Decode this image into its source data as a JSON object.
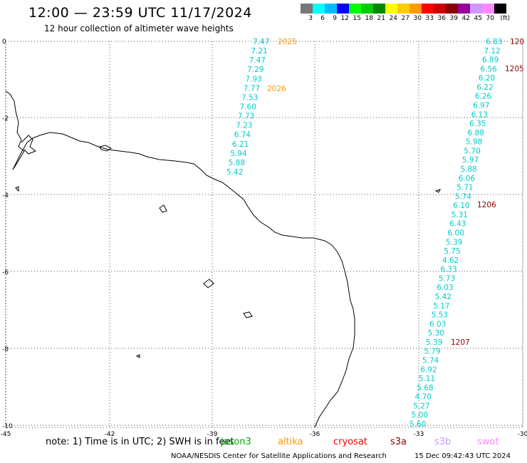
{
  "header": {
    "title": "12:00 — 23:59 UTC 11/17/2024",
    "subtitle": "12 hour collection of altimeter wave heights"
  },
  "colorbar": {
    "unit": "(ft)",
    "labels": [
      "3",
      "6",
      "9",
      "12",
      "15",
      "18",
      "21",
      "24",
      "27",
      "30",
      "33",
      "36",
      "39",
      "42",
      "45",
      "70"
    ],
    "colors": [
      "#777777",
      "#00ffff",
      "#00bbff",
      "#0000ff",
      "#00ff00",
      "#00cc00",
      "#008800",
      "#ffff00",
      "#ffcc00",
      "#ff9900",
      "#ff0000",
      "#cc0000",
      "#880000",
      "#990099",
      "#cc99ff",
      "#ff88ff",
      "#000000"
    ]
  },
  "axes": {
    "x_labels": [
      "-45",
      "-42",
      "-39",
      "-36",
      "-33",
      "-30"
    ],
    "y_labels": [
      "0",
      "-2",
      "-4",
      "-6",
      "-8",
      "-10"
    ]
  },
  "tracks": [
    {
      "color": "#00cccc",
      "values": [
        "7.47",
        "7.21",
        "7.47",
        "7.29",
        "7.93",
        "7.77",
        "7.53",
        "7.60",
        "7.73",
        "7.23",
        "6.74",
        "6.21",
        "5.94",
        "5.88",
        "5.42"
      ],
      "time_labels": [
        {
          "text": "2025",
          "color": "#ff9900"
        },
        {
          "text": "2026",
          "color": "#ff9900"
        }
      ]
    },
    {
      "color": "#00cccc",
      "values": [
        "6.83",
        "7.12",
        "6.89",
        "6.56",
        "6.20",
        "6.22",
        "6.26",
        "6.97",
        "6.13",
        "6.35",
        "6.88",
        "5.98",
        "5.70",
        "5.97",
        "5.88",
        "6.06",
        "5.71",
        "5.74",
        "6.10",
        "5.31",
        "6.43",
        "6.00",
        "5.39",
        "5.75",
        "4.62",
        "6.33",
        "5.73",
        "6.03",
        "5.42",
        "5.17",
        "5.53",
        "6.03",
        "5.30",
        "5.39",
        "5.79",
        "5.74",
        "6.92",
        "5.11",
        "5.68",
        "4.70",
        "5.27",
        "5.00",
        "5.60"
      ],
      "time_labels": [
        {
          "text": "120",
          "color": "#880000"
        },
        {
          "text": "1205",
          "color": "#880000"
        },
        {
          "text": "1206",
          "color": "#880000"
        },
        {
          "text": "1207",
          "color": "#880000"
        }
      ]
    }
  ],
  "footer": {
    "note": "note:  1) Time is in UTC; 2) SWH is in feet",
    "satellites": [
      {
        "name": "jason3",
        "color": "#00aa00"
      },
      {
        "name": "altika",
        "color": "#ff9900"
      },
      {
        "name": "cryosat",
        "color": "#ff0000"
      },
      {
        "name": "s3a",
        "color": "#880000"
      },
      {
        "name": "s3b",
        "color": "#cc99ff"
      },
      {
        "name": "swot",
        "color": "#ff88ff"
      }
    ],
    "credit": "NOAA/NESDIS Center for Satellite Applications and Research",
    "timestamp": "15 Dec 09:42:43 UTC 2024"
  }
}
